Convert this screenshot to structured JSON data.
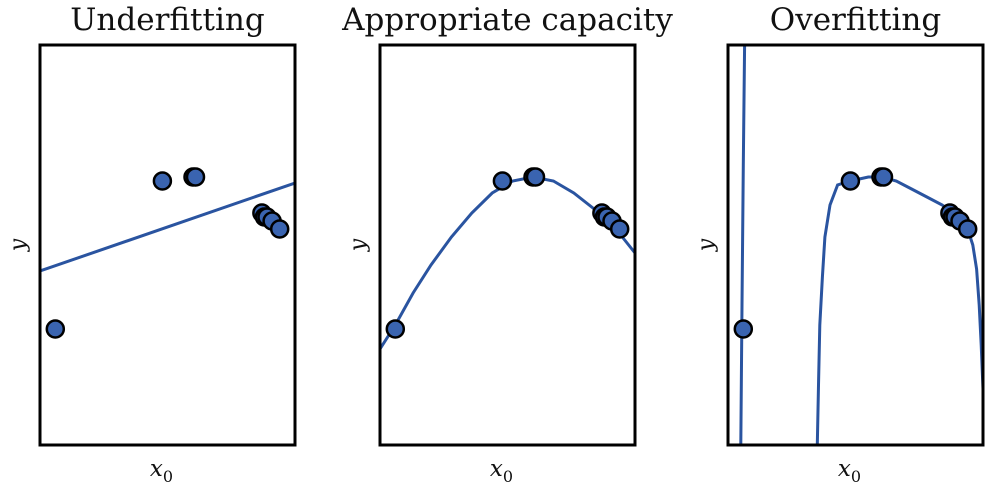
{
  "chart_data": [
    {
      "type": "scatter",
      "title": "Underfitting",
      "xlabel": "x",
      "xlabel_sub": "0",
      "ylabel": "y",
      "xlim": [
        0,
        1
      ],
      "ylim": [
        0,
        1
      ],
      "points": [
        {
          "x": 0.06,
          "y": 0.29
        },
        {
          "x": 0.48,
          "y": 0.66
        },
        {
          "x": 0.6,
          "y": 0.67
        },
        {
          "x": 0.61,
          "y": 0.67
        },
        {
          "x": 0.87,
          "y": 0.58
        },
        {
          "x": 0.88,
          "y": 0.57
        },
        {
          "x": 0.89,
          "y": 0.57
        },
        {
          "x": 0.91,
          "y": 0.56
        },
        {
          "x": 0.94,
          "y": 0.54
        }
      ],
      "fit_curve": [
        [
          0.0,
          0.435
        ],
        [
          1.0,
          0.655
        ]
      ],
      "curve_color": "#2a54a0",
      "point_color": "#3a64b0"
    },
    {
      "type": "scatter",
      "title": "Appropriate capacity",
      "xlabel": "x",
      "xlabel_sub": "0",
      "ylabel": "y",
      "xlim": [
        0,
        1
      ],
      "ylim": [
        0,
        1
      ],
      "points": [
        {
          "x": 0.06,
          "y": 0.29
        },
        {
          "x": 0.48,
          "y": 0.66
        },
        {
          "x": 0.6,
          "y": 0.67
        },
        {
          "x": 0.61,
          "y": 0.67
        },
        {
          "x": 0.87,
          "y": 0.58
        },
        {
          "x": 0.88,
          "y": 0.57
        },
        {
          "x": 0.89,
          "y": 0.57
        },
        {
          "x": 0.91,
          "y": 0.56
        },
        {
          "x": 0.94,
          "y": 0.54
        }
      ],
      "fit_curve": [
        [
          0.0,
          0.24
        ],
        [
          0.06,
          0.3
        ],
        [
          0.13,
          0.38
        ],
        [
          0.2,
          0.45
        ],
        [
          0.28,
          0.52
        ],
        [
          0.36,
          0.58
        ],
        [
          0.44,
          0.63
        ],
        [
          0.52,
          0.66
        ],
        [
          0.6,
          0.67
        ],
        [
          0.68,
          0.66
        ],
        [
          0.76,
          0.63
        ],
        [
          0.84,
          0.59
        ],
        [
          0.9,
          0.56
        ],
        [
          0.95,
          0.52
        ],
        [
          1.0,
          0.48
        ]
      ],
      "curve_color": "#2a54a0",
      "point_color": "#3a64b0"
    },
    {
      "type": "scatter",
      "title": "Overfitting",
      "xlabel": "x",
      "xlabel_sub": "0",
      "ylabel": "y",
      "xlim": [
        0,
        1
      ],
      "ylim": [
        0,
        1
      ],
      "points": [
        {
          "x": 0.06,
          "y": 0.29
        },
        {
          "x": 0.48,
          "y": 0.66
        },
        {
          "x": 0.6,
          "y": 0.67
        },
        {
          "x": 0.61,
          "y": 0.67
        },
        {
          "x": 0.87,
          "y": 0.58
        },
        {
          "x": 0.88,
          "y": 0.57
        },
        {
          "x": 0.89,
          "y": 0.57
        },
        {
          "x": 0.91,
          "y": 0.56
        },
        {
          "x": 0.94,
          "y": 0.54
        }
      ],
      "fit_curve_segments": [
        [
          [
            0.05,
            0.0
          ],
          [
            0.055,
            0.35
          ],
          [
            0.06,
            0.7
          ],
          [
            0.065,
            1.0
          ]
        ],
        [
          [
            0.35,
            0.0
          ],
          [
            0.355,
            0.15
          ],
          [
            0.36,
            0.3
          ],
          [
            0.37,
            0.42
          ],
          [
            0.38,
            0.52
          ],
          [
            0.4,
            0.6
          ],
          [
            0.43,
            0.65
          ],
          [
            0.48,
            0.66
          ],
          [
            0.55,
            0.67
          ],
          [
            0.6,
            0.67
          ],
          [
            0.66,
            0.66
          ],
          [
            0.72,
            0.64
          ],
          [
            0.78,
            0.62
          ],
          [
            0.84,
            0.6
          ],
          [
            0.88,
            0.58
          ],
          [
            0.91,
            0.56
          ],
          [
            0.94,
            0.54
          ],
          [
            0.96,
            0.5
          ],
          [
            0.975,
            0.44
          ],
          [
            0.985,
            0.35
          ],
          [
            0.993,
            0.25
          ],
          [
            1.0,
            0.14
          ]
        ]
      ],
      "curve_color": "#2a54a0",
      "point_color": "#3a64b0"
    }
  ]
}
